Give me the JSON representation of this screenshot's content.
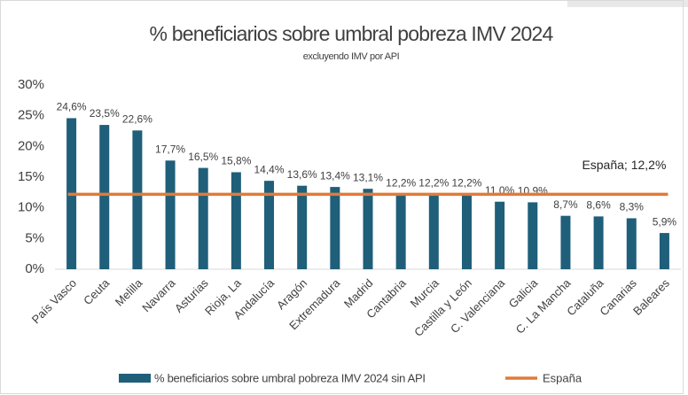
{
  "chart_data": {
    "type": "bar",
    "title": "% beneficiarios sobre umbral pobreza IMV 2024",
    "subtitle": "excluyendo IMV por API",
    "categories": [
      "País Vasco",
      "Ceuta",
      "Melilla",
      "Navarra",
      "Asturias",
      "Rioja, La",
      "Andalucía",
      "Aragón",
      "Extremadura",
      "Madrid",
      "Cantabria",
      "Murcia",
      "Castilla y León",
      "C. Valenciana",
      "Galicia",
      "C. La Mancha",
      "Cataluña",
      "Canarias",
      "Baleares"
    ],
    "series": [
      {
        "name": "% beneficiarios sobre umbral pobreza IMV 2024 sin API",
        "color": "#1f5f7a",
        "values": [
          24.6,
          23.5,
          22.6,
          17.7,
          16.5,
          15.8,
          14.4,
          13.6,
          13.4,
          13.1,
          12.2,
          12.2,
          12.2,
          11.0,
          10.9,
          8.7,
          8.6,
          8.3,
          5.9
        ],
        "value_labels": [
          "24,6%",
          "23,5%",
          "22,6%",
          "17,7%",
          "16,5%",
          "15,8%",
          "14,4%",
          "13,6%",
          "13,4%",
          "13,1%",
          "12,2%",
          "12,2%",
          "12,2%",
          "11,0%",
          "10,9%",
          "8,7%",
          "8,6%",
          "8,3%",
          "5,9%"
        ]
      }
    ],
    "reference_line": {
      "name": "España",
      "value": 12.2,
      "label": "España; 12,2%",
      "color": "#e07b39"
    },
    "ylim": [
      0,
      30
    ],
    "yticks": [
      {
        "value": 0,
        "label": "0%"
      },
      {
        "value": 5,
        "label": "5%"
      },
      {
        "value": 10,
        "label": "10%"
      },
      {
        "value": 15,
        "label": "15%"
      },
      {
        "value": 20,
        "label": "20%"
      },
      {
        "value": 25,
        "label": "25%"
      },
      {
        "value": 30,
        "label": "30%"
      }
    ],
    "grid": false
  }
}
